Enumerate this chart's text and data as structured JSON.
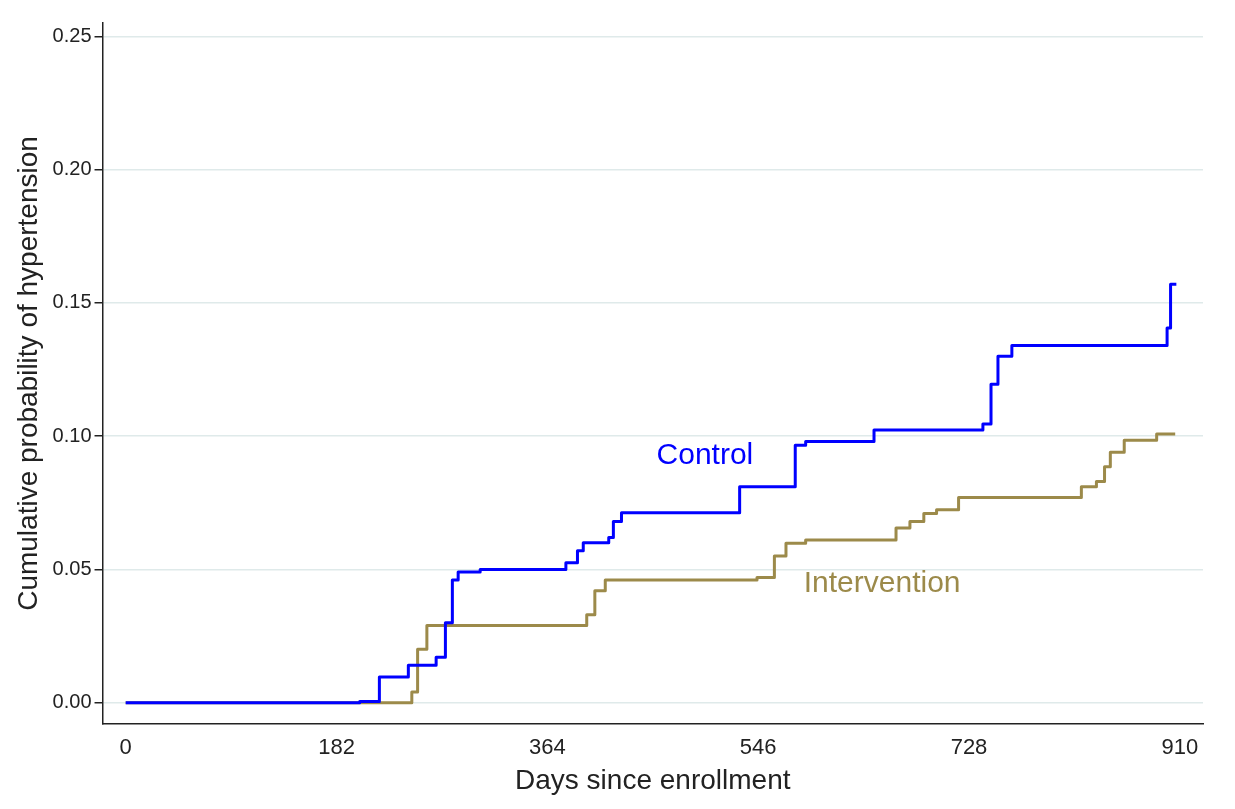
{
  "chart_data": {
    "type": "step",
    "xlabel": "Days since enrollment",
    "ylabel": "Cumulative probability of hypertension",
    "xlim": [
      -20,
      930
    ],
    "ylim": [
      -0.008,
      0.255
    ],
    "xticks": [
      0,
      182,
      364,
      546,
      728,
      910
    ],
    "yticks": [
      {
        "value": 0,
        "label": "0.00"
      },
      {
        "value": 0.05,
        "label": "0.05"
      },
      {
        "value": 0.1,
        "label": "0.10"
      },
      {
        "value": 0.15,
        "label": "0.15"
      },
      {
        "value": 0.2,
        "label": "0.20"
      },
      {
        "value": 0.25,
        "label": "0.25"
      }
    ],
    "grid": "y",
    "legend": false,
    "series": [
      {
        "name": "Control",
        "color": "#0000ff",
        "x": [
          0,
          202,
          219,
          244,
          268,
          276,
          282,
          287,
          306,
          380,
          390,
          395,
          417,
          421,
          428,
          530,
          578,
          587,
          646,
          740,
          747,
          753,
          765,
          899,
          902,
          907
        ],
        "values": [
          0,
          0.0004,
          0.0096,
          0.014,
          0.017,
          0.03,
          0.046,
          0.049,
          0.05,
          0.0525,
          0.057,
          0.06,
          0.062,
          0.068,
          0.0713,
          0.081,
          0.0966,
          0.098,
          0.1023,
          0.1046,
          0.1195,
          0.13,
          0.134,
          0.1406,
          0.157,
          0.157
        ]
      },
      {
        "name": "Intervention",
        "color": "#9c8a4a",
        "x": [
          0,
          247,
          252,
          260,
          398,
          405,
          414,
          545,
          560,
          570,
          587,
          665,
          677,
          689,
          700,
          719,
          825,
          838,
          845,
          850,
          862,
          890,
          906
        ],
        "values": [
          0,
          0.004,
          0.02,
          0.029,
          0.033,
          0.042,
          0.046,
          0.047,
          0.055,
          0.0598,
          0.061,
          0.0655,
          0.068,
          0.071,
          0.0724,
          0.077,
          0.081,
          0.083,
          0.0885,
          0.094,
          0.0985,
          0.1008,
          0.1008
        ]
      }
    ]
  }
}
